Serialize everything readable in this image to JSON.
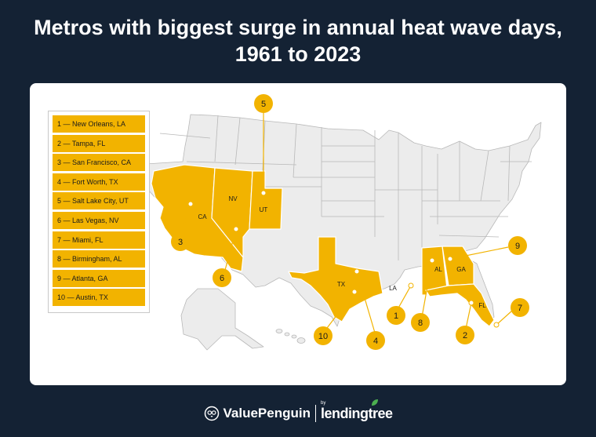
{
  "title": {
    "line1": "Metros with biggest surge in annual heat wave days,",
    "line2": "1961 to 2023"
  },
  "legend": [
    "1 — New Orleans, LA",
    "2 — Tampa, FL",
    "3 — San Francisco, CA",
    "4 — Fort Worth, TX",
    "5 — Salt Lake City, UT",
    "6 — Las Vegas, NV",
    "7 — Miami, FL",
    "8 — Birmingham, AL",
    "9 — Atlanta, GA",
    "10 — Austin, TX"
  ],
  "states": {
    "CA": "CA",
    "NV": "NV",
    "UT": "UT",
    "TX": "TX",
    "LA": "LA",
    "AL": "AL",
    "GA": "GA",
    "FL": "FL"
  },
  "markers": [
    "1",
    "2",
    "3",
    "4",
    "5",
    "6",
    "7",
    "8",
    "9",
    "10"
  ],
  "footer": {
    "brand": "ValuePenguin",
    "by": "by",
    "partner": "lendingtree"
  },
  "colors": {
    "background": "#142234",
    "highlight": "#f2b300",
    "land": "#ececec",
    "border": "#b8b8b8",
    "leaf": "#4caf50"
  },
  "icons": {
    "logo": "penguin-logo-icon",
    "leaf": "leaf-icon"
  }
}
